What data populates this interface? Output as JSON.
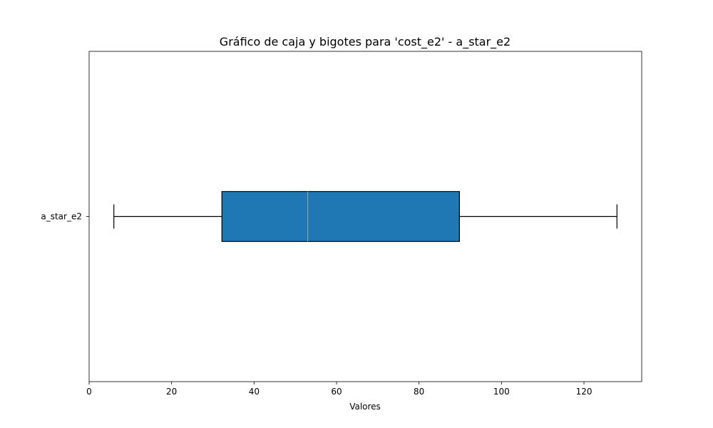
{
  "chart_data": {
    "type": "boxplot",
    "orientation": "horizontal",
    "title": "Gráfico de caja y bigotes para 'cost_e2' - a_star_e2",
    "xlabel": "Valores",
    "ylabel": "",
    "xlim": [
      0,
      134
    ],
    "x_ticks": [
      0,
      20,
      40,
      60,
      80,
      100,
      120
    ],
    "grid": false,
    "categories": [
      "a_star_e2"
    ],
    "boxes": [
      {
        "label": "a_star_e2",
        "whisker_low": 6,
        "q1": 32.2,
        "median": 53,
        "q3": 89.8,
        "whisker_high": 128
      }
    ],
    "colors": {
      "box_fill": "#1f77b4",
      "median_line": "#ff7f0e",
      "edge": "#000000"
    }
  }
}
